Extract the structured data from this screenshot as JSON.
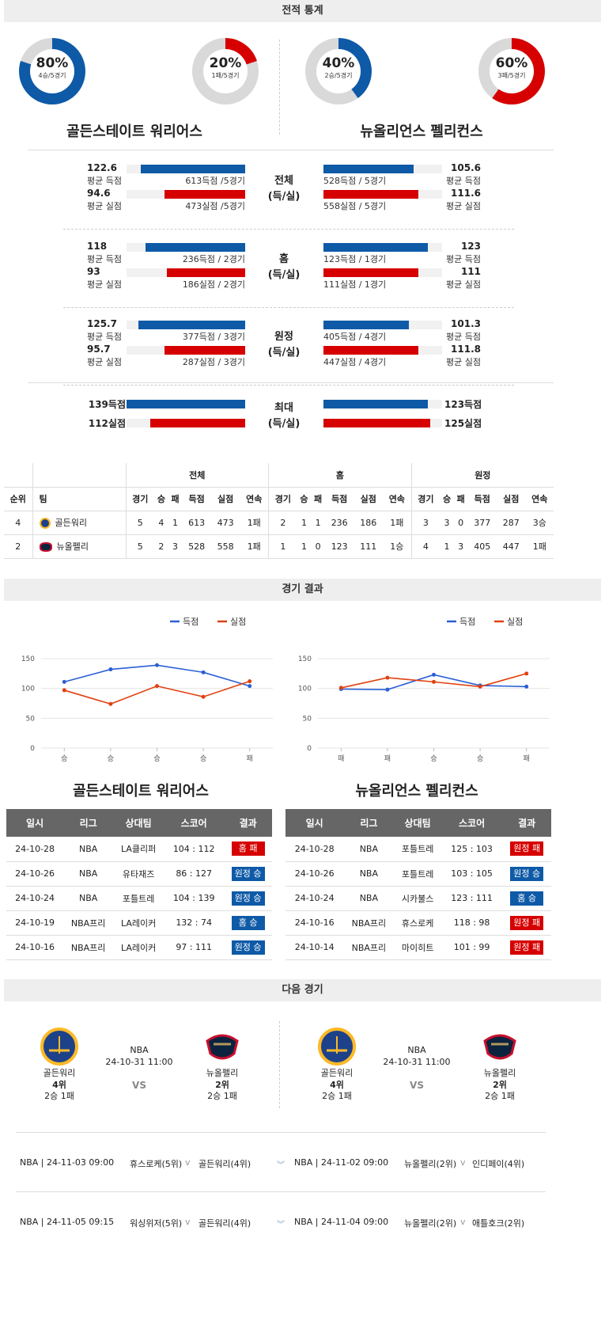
{
  "sections": {
    "stats": "전적 통계",
    "results": "경기 결과",
    "next": "다음 경기"
  },
  "donuts": [
    {
      "pct": "80%",
      "sub": "4승/5경기",
      "value": 0.8,
      "color": "#0e5aa7"
    },
    {
      "pct": "20%",
      "sub": "1패/5경기",
      "value": 0.2,
      "color": "#d60000"
    },
    {
      "pct": "40%",
      "sub": "2승/5경기",
      "value": 0.4,
      "color": "#0e5aa7"
    },
    {
      "pct": "60%",
      "sub": "3패/5경기",
      "value": 0.6,
      "color": "#d60000"
    }
  ],
  "teams": {
    "home": "골든스테이트 워리어스",
    "away": "뉴올리언스 펠리컨스"
  },
  "compare": [
    {
      "mid": [
        "전체",
        "(득/실)"
      ],
      "left": [
        {
          "val": "122.6",
          "lbl": "평균 득점",
          "txt": "613득점 /5경기",
          "frac": 0.88
        },
        {
          "val": "94.6",
          "lbl": "평균 실점",
          "txt": "473실점 /5경기",
          "frac": 0.68
        }
      ],
      "right": [
        {
          "val": "105.6",
          "lbl": "평균 득점",
          "txt": "528득점 / 5경기",
          "frac": 0.76
        },
        {
          "val": "111.6",
          "lbl": "평균 실점",
          "txt": "558실점 / 5경기",
          "frac": 0.8
        }
      ]
    },
    {
      "mid": [
        "홈",
        "(득/실)"
      ],
      "left": [
        {
          "val": "118",
          "lbl": "평균 득점",
          "txt": "236득점 / 2경기",
          "frac": 0.84
        },
        {
          "val": "93",
          "lbl": "평균 실점",
          "txt": "186실점 / 2경기",
          "frac": 0.66
        }
      ],
      "right": [
        {
          "val": "123",
          "lbl": "평균 득점",
          "txt": "123득점 / 1경기",
          "frac": 0.88
        },
        {
          "val": "111",
          "lbl": "평균 실점",
          "txt": "111실점 / 1경기",
          "frac": 0.8
        }
      ]
    },
    {
      "mid": [
        "원정",
        "(득/실)"
      ],
      "left": [
        {
          "val": "125.7",
          "lbl": "평균 득점",
          "txt": "377득점 / 3경기",
          "frac": 0.9
        },
        {
          "val": "95.7",
          "lbl": "평균 실점",
          "txt": "287실점 / 3경기",
          "frac": 0.68
        }
      ],
      "right": [
        {
          "val": "101.3",
          "lbl": "평균 득점",
          "txt": "405득점 / 4경기",
          "frac": 0.72
        },
        {
          "val": "111.8",
          "lbl": "평균 실점",
          "txt": "447실점 / 4경기",
          "frac": 0.8
        }
      ]
    }
  ],
  "max": {
    "mid": [
      "최대",
      "(득/실)"
    ],
    "left": [
      {
        "val": "139득점",
        "frac": 1.0
      },
      {
        "val": "112실점",
        "frac": 0.8
      }
    ],
    "right": [
      {
        "val": "123득점",
        "frac": 0.88
      },
      {
        "val": "125실점",
        "frac": 0.9
      }
    ]
  },
  "standings": {
    "groups": [
      "전체",
      "홈",
      "원정"
    ],
    "headers": [
      "순위",
      "팀",
      "경기",
      "승",
      "패",
      "득점",
      "실점",
      "연속",
      "경기",
      "승",
      "패",
      "득점",
      "실점",
      "연속",
      "경기",
      "승",
      "패",
      "득점",
      "실점",
      "연속"
    ],
    "rows": [
      [
        "4",
        "골든워리",
        "5",
        "4",
        "1",
        "613",
        "473",
        "1패",
        "2",
        "1",
        "1",
        "236",
        "186",
        "1패",
        "3",
        "3",
        "0",
        "377",
        "287",
        "3승"
      ],
      [
        "2",
        "뉴올펠리",
        "5",
        "2",
        "3",
        "528",
        "558",
        "1패",
        "1",
        "1",
        "0",
        "123",
        "111",
        "1승",
        "4",
        "1",
        "3",
        "405",
        "447",
        "1패"
      ]
    ]
  },
  "legend": {
    "scored": "득점",
    "conceded": "실점"
  },
  "chart_data": [
    {
      "type": "line",
      "categories": [
        "승",
        "승",
        "승",
        "승",
        "패"
      ],
      "ylim": [
        0,
        150
      ],
      "yticks": [
        "0",
        "50",
        "100",
        "150"
      ],
      "series": [
        {
          "name": "득점",
          "color": "#2a5fd6",
          "values": [
            111,
            132,
            139,
            127,
            104
          ]
        },
        {
          "name": "실점",
          "color": "#e04010",
          "values": [
            97,
            74,
            104,
            86,
            112
          ]
        }
      ]
    },
    {
      "type": "line",
      "categories": [
        "패",
        "패",
        "승",
        "승",
        "패"
      ],
      "ylim": [
        0,
        150
      ],
      "yticks": [
        "0",
        "50",
        "100",
        "150"
      ],
      "series": [
        {
          "name": "득점",
          "color": "#2a5fd6",
          "values": [
            99,
            98,
            123,
            105,
            103
          ]
        },
        {
          "name": "실점",
          "color": "#e04010",
          "values": [
            101,
            118,
            111,
            103,
            125
          ]
        }
      ]
    }
  ],
  "results_headers": [
    "일시",
    "리그",
    "상대팀",
    "스코어",
    "결과"
  ],
  "results_left": [
    [
      "24-10-28",
      "NBA",
      "LA클리퍼",
      "104 : 112",
      "홈 패",
      "red"
    ],
    [
      "24-10-26",
      "NBA",
      "유타재즈",
      "86 : 127",
      "원정 승",
      "blue"
    ],
    [
      "24-10-24",
      "NBA",
      "포틀트레",
      "104 : 139",
      "원정 승",
      "blue"
    ],
    [
      "24-10-19",
      "NBA프리",
      "LA레이커",
      "132 : 74",
      "홈 승",
      "blue"
    ],
    [
      "24-10-16",
      "NBA프리",
      "LA레이커",
      "97 : 111",
      "원정 승",
      "blue"
    ]
  ],
  "results_right": [
    [
      "24-10-28",
      "NBA",
      "포틀트레",
      "125 : 103",
      "원정 패",
      "red"
    ],
    [
      "24-10-26",
      "NBA",
      "포틀트레",
      "103 : 105",
      "원정 승",
      "blue"
    ],
    [
      "24-10-24",
      "NBA",
      "시카불스",
      "123 : 111",
      "홈 승",
      "blue"
    ],
    [
      "24-10-16",
      "NBA프리",
      "휴스로케",
      "118 : 98",
      "원정 패",
      "red"
    ],
    [
      "24-10-14",
      "NBA프리",
      "마이히트",
      "101 : 99",
      "원정 패",
      "red"
    ]
  ],
  "next": {
    "league": "NBA",
    "time": "24-10-31 11:00",
    "vs": "VS",
    "home": {
      "name": "골든워리",
      "rank": "4위",
      "rec": "2승 1패"
    },
    "away": {
      "name": "뉴올펠리",
      "rank": "2위",
      "rec": "2승 1패"
    }
  },
  "upcoming": [
    {
      "left": {
        "info": "NBA | 24-11-03 09:00",
        "t1": "휴스로케(5위)",
        "t2": "골든워리(4위)"
      },
      "right": {
        "info": "NBA | 24-11-02 09:00",
        "t1": "뉴올펠리(2위)",
        "t2": "인디페이(4위)"
      }
    },
    {
      "left": {
        "info": "NBA | 24-11-05 09:15",
        "t1": "워싱위저(5위)",
        "t2": "골든워리(4위)"
      },
      "right": {
        "info": "NBA | 24-11-04 09:00",
        "t1": "뉴올펠리(2위)",
        "t2": "애틀호크(2위)"
      }
    }
  ]
}
